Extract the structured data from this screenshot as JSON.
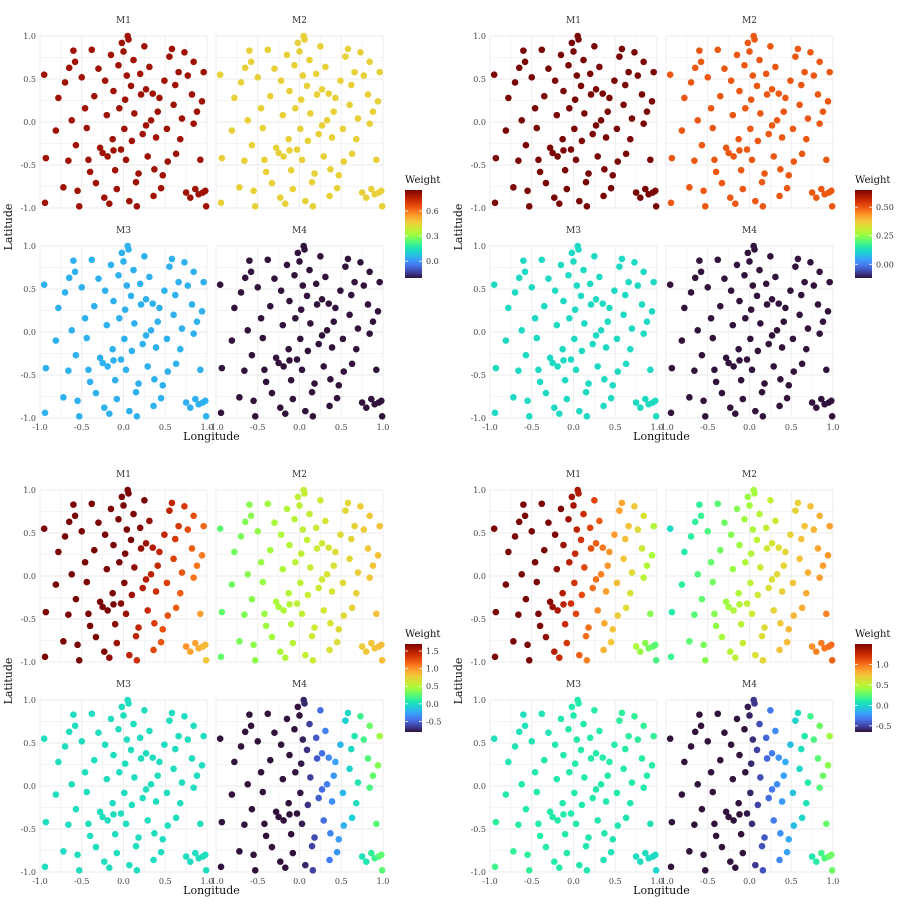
{
  "chart_data": [
    {
      "type": "scatter",
      "panel_titles": [
        "M1",
        "M2",
        "M3",
        "M4"
      ],
      "xlabel": "Longitude",
      "ylabel": "Latitude",
      "xlim": [
        -1.0,
        1.0
      ],
      "ylim": [
        -1.0,
        1.0
      ],
      "xticks": [
        "-1.0",
        "-0.5",
        "0.0",
        "0.5",
        "1.0"
      ],
      "yticks": [
        "-1.0",
        "-0.5",
        "0.0",
        "0.5",
        "1.0"
      ],
      "grid": true,
      "legend": {
        "title": "Weight",
        "placement": "right",
        "min": -0.2,
        "max": 0.85,
        "ticks": [
          {
            "v": 0.0,
            "label": "0.0"
          },
          {
            "v": 0.3,
            "label": "0.3"
          },
          {
            "v": 0.6,
            "label": "0.6"
          }
        ]
      },
      "weights": {
        "M1": 0.8,
        "M2": 0.45,
        "M3": 0.05,
        "M4": -0.2
      }
    },
    {
      "type": "scatter",
      "panel_titles": [
        "M1",
        "M2",
        "M3",
        "M4"
      ],
      "xlabel": "Longitude",
      "ylabel": "Latitude",
      "xlim": [
        -1.0,
        1.0
      ],
      "ylim": [
        -1.0,
        1.0
      ],
      "xticks": [
        "-1.0",
        "-0.5",
        "0.0",
        "0.5",
        "1.0"
      ],
      "yticks": [
        "-1.0",
        "-0.5",
        "0.0",
        "0.5",
        "1.0"
      ],
      "grid": true,
      "legend": {
        "title": "Weight",
        "placement": "right",
        "min": -0.12,
        "max": 0.65,
        "ticks": [
          {
            "v": 0.0,
            "label": "0.00"
          },
          {
            "v": 0.25,
            "label": "0.25"
          },
          {
            "v": 0.5,
            "label": "0.50"
          }
        ]
      },
      "weights": {
        "M1": 0.65,
        "M2": 0.5,
        "M3": 0.12,
        "M4": -0.12
      }
    },
    {
      "type": "scatter",
      "panel_titles": [
        "M1",
        "M2",
        "M3",
        "M4"
      ],
      "xlabel": "Longitude",
      "ylabel": "Latitude",
      "xlim": [
        -1.0,
        1.0
      ],
      "ylim": [
        -1.0,
        1.0
      ],
      "xticks": [
        "-1.0",
        "-0.5",
        "0.0",
        "0.5",
        "1.0"
      ],
      "yticks": [
        "-1.0",
        "-0.5",
        "0.0",
        "0.5",
        "1.0"
      ],
      "grid": true,
      "legend": {
        "title": "Weight",
        "placement": "right",
        "min": -0.8,
        "max": 1.7,
        "ticks": [
          {
            "v": -0.5,
            "label": "-0.5"
          },
          {
            "v": 0.0,
            "label": "0.0"
          },
          {
            "v": 0.5,
            "label": "0.5"
          },
          {
            "v": 1.0,
            "label": "1.0"
          },
          {
            "v": 1.5,
            "label": "1.5"
          }
        ]
      },
      "weights": {
        "M1": [
          1.7,
          -0.7,
          0.2,
          0.0
        ],
        "M2": [
          0.55,
          0.3,
          0.0,
          0.0
        ],
        "M3": [
          0.0,
          0.0,
          0.0,
          0.0
        ],
        "M4": [
          -0.8,
          1.2,
          0.0,
          0.15
        ]
      }
    },
    {
      "type": "scatter",
      "panel_titles": [
        "M1",
        "M2",
        "M3",
        "M4"
      ],
      "xlabel": "Longitude",
      "ylabel": "Latitude",
      "xlim": [
        -1.0,
        1.0
      ],
      "ylim": [
        -1.0,
        1.0
      ],
      "xticks": [
        "-1.0",
        "-0.5",
        "0.0",
        "0.5",
        "1.0"
      ],
      "yticks": [
        "-1.0",
        "-0.5",
        "0.0",
        "0.5",
        "1.0"
      ],
      "grid": true,
      "legend": {
        "title": "Weight",
        "placement": "right",
        "min": -0.65,
        "max": 1.5,
        "ticks": [
          {
            "v": -0.5,
            "label": "-0.5"
          },
          {
            "v": 0.0,
            "label": "0.0"
          },
          {
            "v": 0.5,
            "label": "0.5"
          },
          {
            "v": 1.0,
            "label": "1.0"
          }
        ]
      },
      "weights": {
        "M1": [
          1.25,
          -0.9,
          0.15,
          0.0
        ],
        "M2": [
          0.5,
          0.45,
          -0.1,
          0.0
        ],
        "M3": [
          0.1,
          0.0,
          0.0,
          0.1
        ],
        "M4": [
          -0.6,
          1.0,
          0.0,
          0.1
        ]
      }
    }
  ],
  "locations": [
    [
      -0.95,
      0.55
    ],
    [
      -0.93,
      -0.42
    ],
    [
      -0.94,
      -0.94
    ],
    [
      -0.78,
      0.28
    ],
    [
      -0.72,
      -0.76
    ],
    [
      -0.7,
      0.46
    ],
    [
      -0.66,
      -0.45
    ],
    [
      -0.62,
      0.02
    ],
    [
      -0.6,
      0.83
    ],
    [
      -0.58,
      0.7
    ],
    [
      -0.57,
      -0.27
    ],
    [
      -0.55,
      -0.8
    ],
    [
      -0.53,
      -0.98
    ],
    [
      -0.5,
      0.52
    ],
    [
      -0.46,
      0.16
    ],
    [
      -0.44,
      -0.07
    ],
    [
      -0.42,
      -0.44
    ],
    [
      -0.38,
      0.84
    ],
    [
      -0.35,
      0.3
    ],
    [
      -0.33,
      -0.71
    ],
    [
      -0.3,
      0.62
    ],
    [
      -0.28,
      -0.3
    ],
    [
      -0.25,
      -0.36
    ],
    [
      -0.23,
      -0.88
    ],
    [
      -0.22,
      0.48
    ],
    [
      -0.2,
      0.08
    ],
    [
      -0.19,
      -0.4
    ],
    [
      -0.17,
      -0.95
    ],
    [
      -0.15,
      0.78
    ],
    [
      -0.13,
      -0.2
    ],
    [
      -0.12,
      0.36
    ],
    [
      -0.1,
      -0.56
    ],
    [
      -0.08,
      -0.78
    ],
    [
      -0.06,
      0.66
    ],
    [
      -0.05,
      0.16
    ],
    [
      -0.03,
      -0.32
    ],
    [
      -0.02,
      0.92
    ],
    [
      0.0,
      0.82
    ],
    [
      0.01,
      -0.08
    ],
    [
      0.03,
      -0.44
    ],
    [
      0.04,
      0.54
    ],
    [
      0.05,
      1.0
    ],
    [
      0.06,
      0.96
    ],
    [
      0.07,
      -0.92
    ],
    [
      0.09,
      0.42
    ],
    [
      0.1,
      -0.22
    ],
    [
      0.12,
      0.72
    ],
    [
      0.13,
      0.1
    ],
    [
      0.15,
      -0.7
    ],
    [
      0.16,
      -0.98
    ],
    [
      0.18,
      -0.6
    ],
    [
      0.2,
      0.56
    ],
    [
      0.21,
      0.32
    ],
    [
      0.23,
      -0.14
    ],
    [
      0.25,
      0.88
    ],
    [
      0.27,
      0.38
    ],
    [
      0.29,
      -0.4
    ],
    [
      0.31,
      0.64
    ],
    [
      0.33,
      0.02
    ],
    [
      0.35,
      0.33
    ],
    [
      0.37,
      -0.55
    ],
    [
      0.39,
      -0.18
    ],
    [
      0.41,
      0.12
    ],
    [
      0.43,
      0.28
    ],
    [
      0.45,
      -0.77
    ],
    [
      0.47,
      -0.62
    ],
    [
      0.49,
      0.48
    ],
    [
      0.52,
      -0.08
    ],
    [
      0.55,
      0.76
    ],
    [
      0.58,
      0.85
    ],
    [
      0.6,
      0.2
    ],
    [
      0.63,
      -0.37
    ],
    [
      0.66,
      0.58
    ],
    [
      0.68,
      -0.2
    ],
    [
      0.7,
      0.04
    ],
    [
      0.73,
      0.81
    ],
    [
      0.75,
      -0.82
    ],
    [
      0.77,
      0.54
    ],
    [
      0.8,
      -0.88
    ],
    [
      0.82,
      0.32
    ],
    [
      0.84,
      -0.02
    ],
    [
      0.86,
      -0.78
    ],
    [
      0.88,
      0.12
    ],
    [
      0.9,
      -0.84
    ],
    [
      0.92,
      -0.44
    ],
    [
      0.94,
      0.24
    ],
    [
      0.95,
      -0.82
    ],
    [
      0.96,
      0.58
    ],
    [
      0.98,
      -0.8
    ],
    [
      0.99,
      -0.98
    ],
    [
      -0.81,
      -0.1
    ],
    [
      -0.4,
      -0.58
    ],
    [
      0.02,
      0.26
    ],
    [
      0.36,
      -0.86
    ],
    [
      0.62,
      0.43
    ],
    [
      -0.65,
      0.63
    ],
    [
      0.27,
      -0.04
    ],
    [
      -0.12,
      -0.33
    ],
    [
      0.53,
      -0.46
    ],
    [
      0.84,
      0.7
    ]
  ]
}
